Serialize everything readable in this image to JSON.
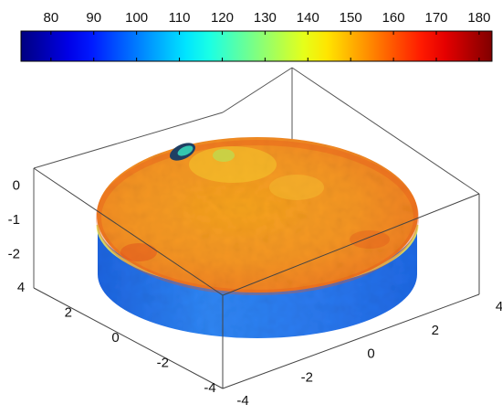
{
  "chart_data": {
    "type": "surface3d",
    "title": "",
    "colorbar": {
      "colormap": "jet",
      "orientation": "horizontal",
      "placement": "top",
      "range": [
        73,
        183
      ],
      "ticks": [
        80,
        90,
        100,
        110,
        120,
        130,
        140,
        150,
        160,
        170,
        180
      ],
      "tick_labels": [
        "80",
        "90",
        "100",
        "110",
        "120",
        "130",
        "140",
        "150",
        "160",
        "170",
        "180"
      ]
    },
    "axes": {
      "x": {
        "range": [
          -4.5,
          4.5
        ],
        "ticks": [
          -4,
          -2,
          0,
          2,
          4
        ],
        "tick_labels": [
          "-4",
          "-2",
          "0",
          "2",
          "4"
        ],
        "label": ""
      },
      "y": {
        "range": [
          -4.5,
          4.5
        ],
        "ticks": [
          -4,
          -2,
          0,
          2,
          4
        ],
        "tick_labels": [
          "-4",
          "-2",
          "0",
          "2",
          "4"
        ],
        "label": ""
      },
      "z": {
        "range": [
          -3,
          0.5
        ],
        "ticks": [
          -2,
          -1,
          0
        ],
        "tick_labels": [
          "-2",
          "-1",
          "0"
        ],
        "label": ""
      },
      "box": true,
      "grid": false
    },
    "object": {
      "shape": "cylinder",
      "radius": 4.2,
      "z_bottom": -3,
      "z_top": -1,
      "top_face_value": 158,
      "side_wall_value": 100,
      "hot_spot_value": 123
    }
  }
}
